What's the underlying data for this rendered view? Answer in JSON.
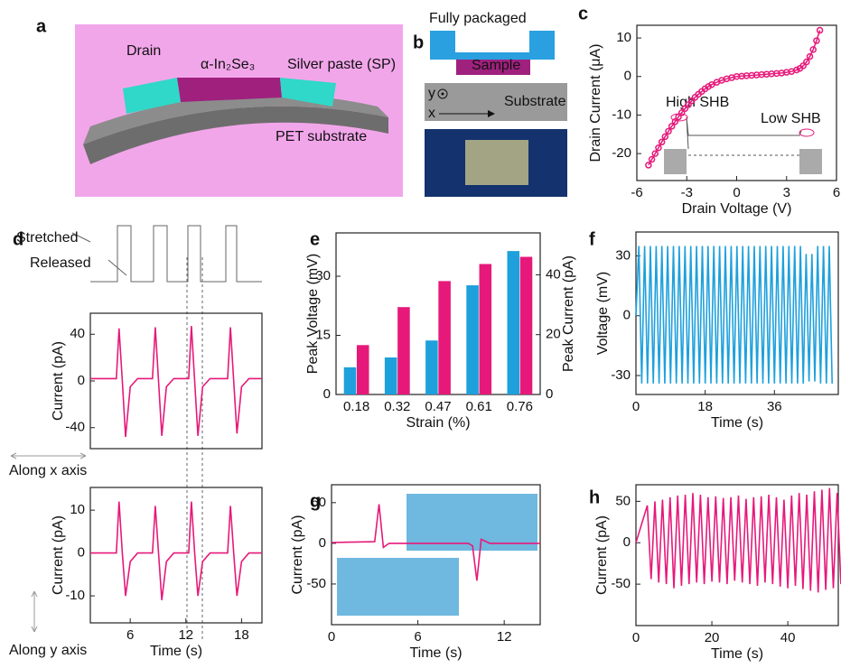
{
  "panel_letters": [
    "a",
    "b",
    "c",
    "d",
    "e",
    "f",
    "g",
    "h"
  ],
  "panel_a": {
    "labels": [
      "Drain",
      "α-In₂Se₃",
      "Silver paste (SP)",
      "PET substrate"
    ]
  },
  "panel_b": {
    "labels": [
      "Fully packaged",
      "Sample",
      "Substrate",
      "y",
      "x"
    ]
  },
  "panel_c_inset": [
    "High SHB",
    "Low SHB"
  ],
  "panel_d": {
    "labels": [
      "Stretched",
      "Released",
      "Along x axis",
      "Along y axis"
    ]
  },
  "chart_data": [
    {
      "type": "line",
      "markers": true,
      "color": "#e6197a",
      "xlabel": "Drain Voltage (V)",
      "ylabel": "Drain Current (μA)",
      "xlim": [
        -6,
        6
      ],
      "xticks": [
        -6,
        -3,
        0,
        3,
        6
      ],
      "ylim": [
        -27,
        13.3
      ],
      "yticks": [
        -20,
        -10,
        0,
        10
      ],
      "x": [
        -5.3,
        -5.1,
        -4.9,
        -4.7,
        -4.5,
        -4.3,
        -4.1,
        -3.9,
        -3.7,
        -3.5,
        -3.3,
        -3.1,
        -2.9,
        -2.7,
        -2.5,
        -2.3,
        -2.1,
        -1.9,
        -1.7,
        -1.5,
        -1.2,
        -0.9,
        -0.6,
        -0.3,
        0,
        0.3,
        0.6,
        0.9,
        1.2,
        1.5,
        1.8,
        2.1,
        2.4,
        2.7,
        3,
        3.3,
        3.6,
        3.8,
        4,
        4.2,
        4.4,
        4.6,
        4.8,
        5
      ],
      "values": [
        -23,
        -21.5,
        -20,
        -18.5,
        -17,
        -15.6,
        -14.2,
        -12.9,
        -11.7,
        -10.5,
        -9.4,
        -8.3,
        -7.3,
        -6.3,
        -5.4,
        -4.6,
        -3.9,
        -3.2,
        -2.6,
        -2.1,
        -1.5,
        -1,
        -0.6,
        -0.3,
        0,
        0.1,
        0.2,
        0.3,
        0.4,
        0.5,
        0.6,
        0.7,
        0.8,
        0.9,
        1.1,
        1.3,
        1.7,
        2.1,
        2.8,
        3.8,
        5.2,
        7,
        9.3,
        12
      ]
    },
    {
      "type": "line",
      "color": "#e6197a",
      "ylabel": "Current (pA)",
      "xlim": [
        1.7,
        20.2
      ],
      "ylim": [
        -58,
        58
      ],
      "yticks": [
        -40,
        0,
        40
      ],
      "x": [
        1.7,
        4.5,
        4.8,
        5.15,
        5.5,
        6.0,
        6.8,
        8.4,
        8.7,
        9.05,
        9.4,
        9.9,
        10.7,
        12.3,
        12.6,
        12.95,
        13.3,
        13.8,
        14.6,
        16.5,
        16.8,
        17.15,
        17.5,
        18.0,
        18.8,
        20.2
      ],
      "values": [
        2,
        2,
        45,
        0,
        -48,
        -5,
        2,
        2,
        46,
        0,
        -47,
        -5,
        2,
        2,
        47,
        0,
        -47,
        -5,
        2,
        2,
        46,
        0,
        -45,
        -5,
        2,
        2
      ]
    },
    {
      "type": "line",
      "color": "#e6197a",
      "ylabel": "Current (pA)",
      "xlabel": "Time (s)",
      "xlim": [
        1.7,
        20.2
      ],
      "xticks": [
        6,
        12,
        18
      ],
      "ylim": [
        -16.3,
        15.3
      ],
      "yticks": [
        -10,
        0,
        10
      ],
      "x": [
        1.7,
        4.5,
        4.8,
        5.15,
        5.5,
        6.0,
        6.8,
        8.4,
        8.7,
        9.05,
        9.4,
        9.9,
        10.7,
        12.3,
        12.6,
        12.95,
        13.3,
        13.8,
        14.6,
        16.5,
        16.8,
        17.15,
        17.5,
        18.0,
        18.8,
        20.2
      ],
      "values": [
        0,
        0,
        12,
        0,
        -10,
        -2,
        0,
        0,
        11,
        0,
        -11,
        -2,
        0,
        0,
        12,
        0,
        -10,
        -2,
        0,
        0,
        11,
        0,
        -10,
        -2,
        0,
        0
      ]
    },
    {
      "type": "bar",
      "xlabel": "Strain (%)",
      "categories": [
        "0.18",
        "0.32",
        "0.47",
        "0.61",
        "0.76"
      ],
      "ylim": [
        0,
        41
      ],
      "yticks": [
        0,
        15,
        30
      ],
      "y2lim": [
        0,
        54
      ],
      "y2ticks": [
        0,
        20,
        40
      ],
      "series": [
        {
          "name": "Peak Voltage (mV)",
          "color": "#1ea0dc",
          "values": [
            6.9,
            9.4,
            13.7,
            27.7,
            36.4
          ]
        },
        {
          "name": "Peak Current (pA)",
          "color": "#e6197a",
          "axis": "y2",
          "values": [
            16.5,
            29.2,
            37.9,
            43.6,
            46
          ]
        }
      ]
    },
    {
      "type": "line",
      "color": "#1ea0dc",
      "ylabel": "Voltage (mV)",
      "xlabel": "Time (s)",
      "xlim": [
        0,
        52.6
      ],
      "xticks": [
        0,
        18,
        36
      ],
      "ylim": [
        -39.5,
        42
      ],
      "yticks": [
        -30,
        0,
        30
      ],
      "x": [
        0,
        0.75,
        1.5,
        2.25,
        3,
        3.75,
        4.5,
        5.25,
        6,
        6.75,
        7.5,
        8.25,
        9,
        9.75,
        10.5,
        11.25,
        12,
        12.75,
        13.5,
        14.25,
        15,
        15.75,
        16.5,
        17.25,
        18,
        18.75,
        19.5,
        20.25,
        21,
        21.75,
        22.5,
        23.25,
        24,
        24.75,
        25.5,
        26.25,
        27,
        27.75,
        28.5,
        29.25,
        30,
        30.75,
        31.5,
        32.25,
        33,
        33.75,
        34.5,
        35.25,
        36,
        36.75,
        37.5,
        38.25,
        39,
        39.75,
        40.5,
        41.25,
        42,
        42.75,
        43.5,
        44.25,
        45,
        45.75,
        46.5,
        47.25,
        48,
        48.75,
        49.5,
        50.25,
        51
      ],
      "values": [
        0,
        35,
        -34,
        35,
        -34,
        35,
        -34,
        35,
        -34,
        35,
        -34,
        35,
        -34,
        35,
        -34,
        35,
        -34,
        35,
        -34,
        35,
        -34,
        35,
        -34,
        35,
        -34,
        35,
        -34,
        35,
        -34,
        35,
        -34,
        35,
        -34,
        35,
        -34,
        35,
        -34,
        35,
        -34,
        35,
        -34,
        35,
        -34,
        35,
        -34,
        35,
        -34,
        35,
        -34,
        35,
        -34,
        35,
        -34,
        35,
        -34,
        35,
        -34,
        35,
        -34,
        31,
        -33,
        31,
        -33,
        35,
        -34,
        35,
        -34,
        35,
        -34
      ]
    },
    {
      "type": "line",
      "color": "#e6197a",
      "ylabel": "Current (pA)",
      "xlabel": "Time (s)",
      "xlim": [
        0,
        14.5
      ],
      "xticks": [
        0,
        6,
        12
      ],
      "ylim": [
        -100,
        72
      ],
      "yticks": [
        -50,
        0,
        50
      ],
      "x": [
        0,
        3,
        3.3,
        3.6,
        4,
        9.5,
        9.8,
        10.1,
        10.4,
        11,
        14.5
      ],
      "values": [
        1,
        2,
        48,
        -5,
        0,
        0,
        -3,
        -46,
        5,
        0,
        0
      ]
    },
    {
      "type": "line",
      "color": "#e6197a",
      "ylabel": "Current (pA)",
      "xlabel": "Time (s)",
      "xlim": [
        0,
        53.3
      ],
      "xticks": [
        0,
        20,
        40
      ],
      "ylim": [
        -100,
        70
      ],
      "yticks": [
        -50,
        0,
        50
      ],
      "x": [
        0,
        3,
        4,
        5,
        6,
        7,
        8,
        9,
        10,
        11,
        12,
        13,
        14,
        15,
        16,
        17,
        18,
        19,
        20,
        21,
        22,
        23,
        24,
        25,
        26,
        27,
        28,
        29,
        30,
        31,
        32,
        33,
        34,
        35,
        36,
        37,
        38,
        39,
        40,
        41,
        42,
        43,
        44,
        45,
        46,
        47,
        48,
        49,
        50,
        51,
        52,
        53,
        54
      ],
      "values": [
        0,
        45,
        -44,
        50,
        -48,
        52,
        -50,
        55,
        -55,
        57,
        -52,
        58,
        -50,
        60,
        -48,
        58,
        -50,
        55,
        -47,
        56,
        -48,
        54,
        -50,
        55,
        -46,
        57,
        -48,
        53,
        -50,
        55,
        -52,
        56,
        -48,
        58,
        -50,
        55,
        -53,
        52,
        -55,
        57,
        -52,
        60,
        -56,
        58,
        -58,
        62,
        -60,
        64,
        -57,
        66,
        -55,
        60,
        -50
      ]
    }
  ]
}
